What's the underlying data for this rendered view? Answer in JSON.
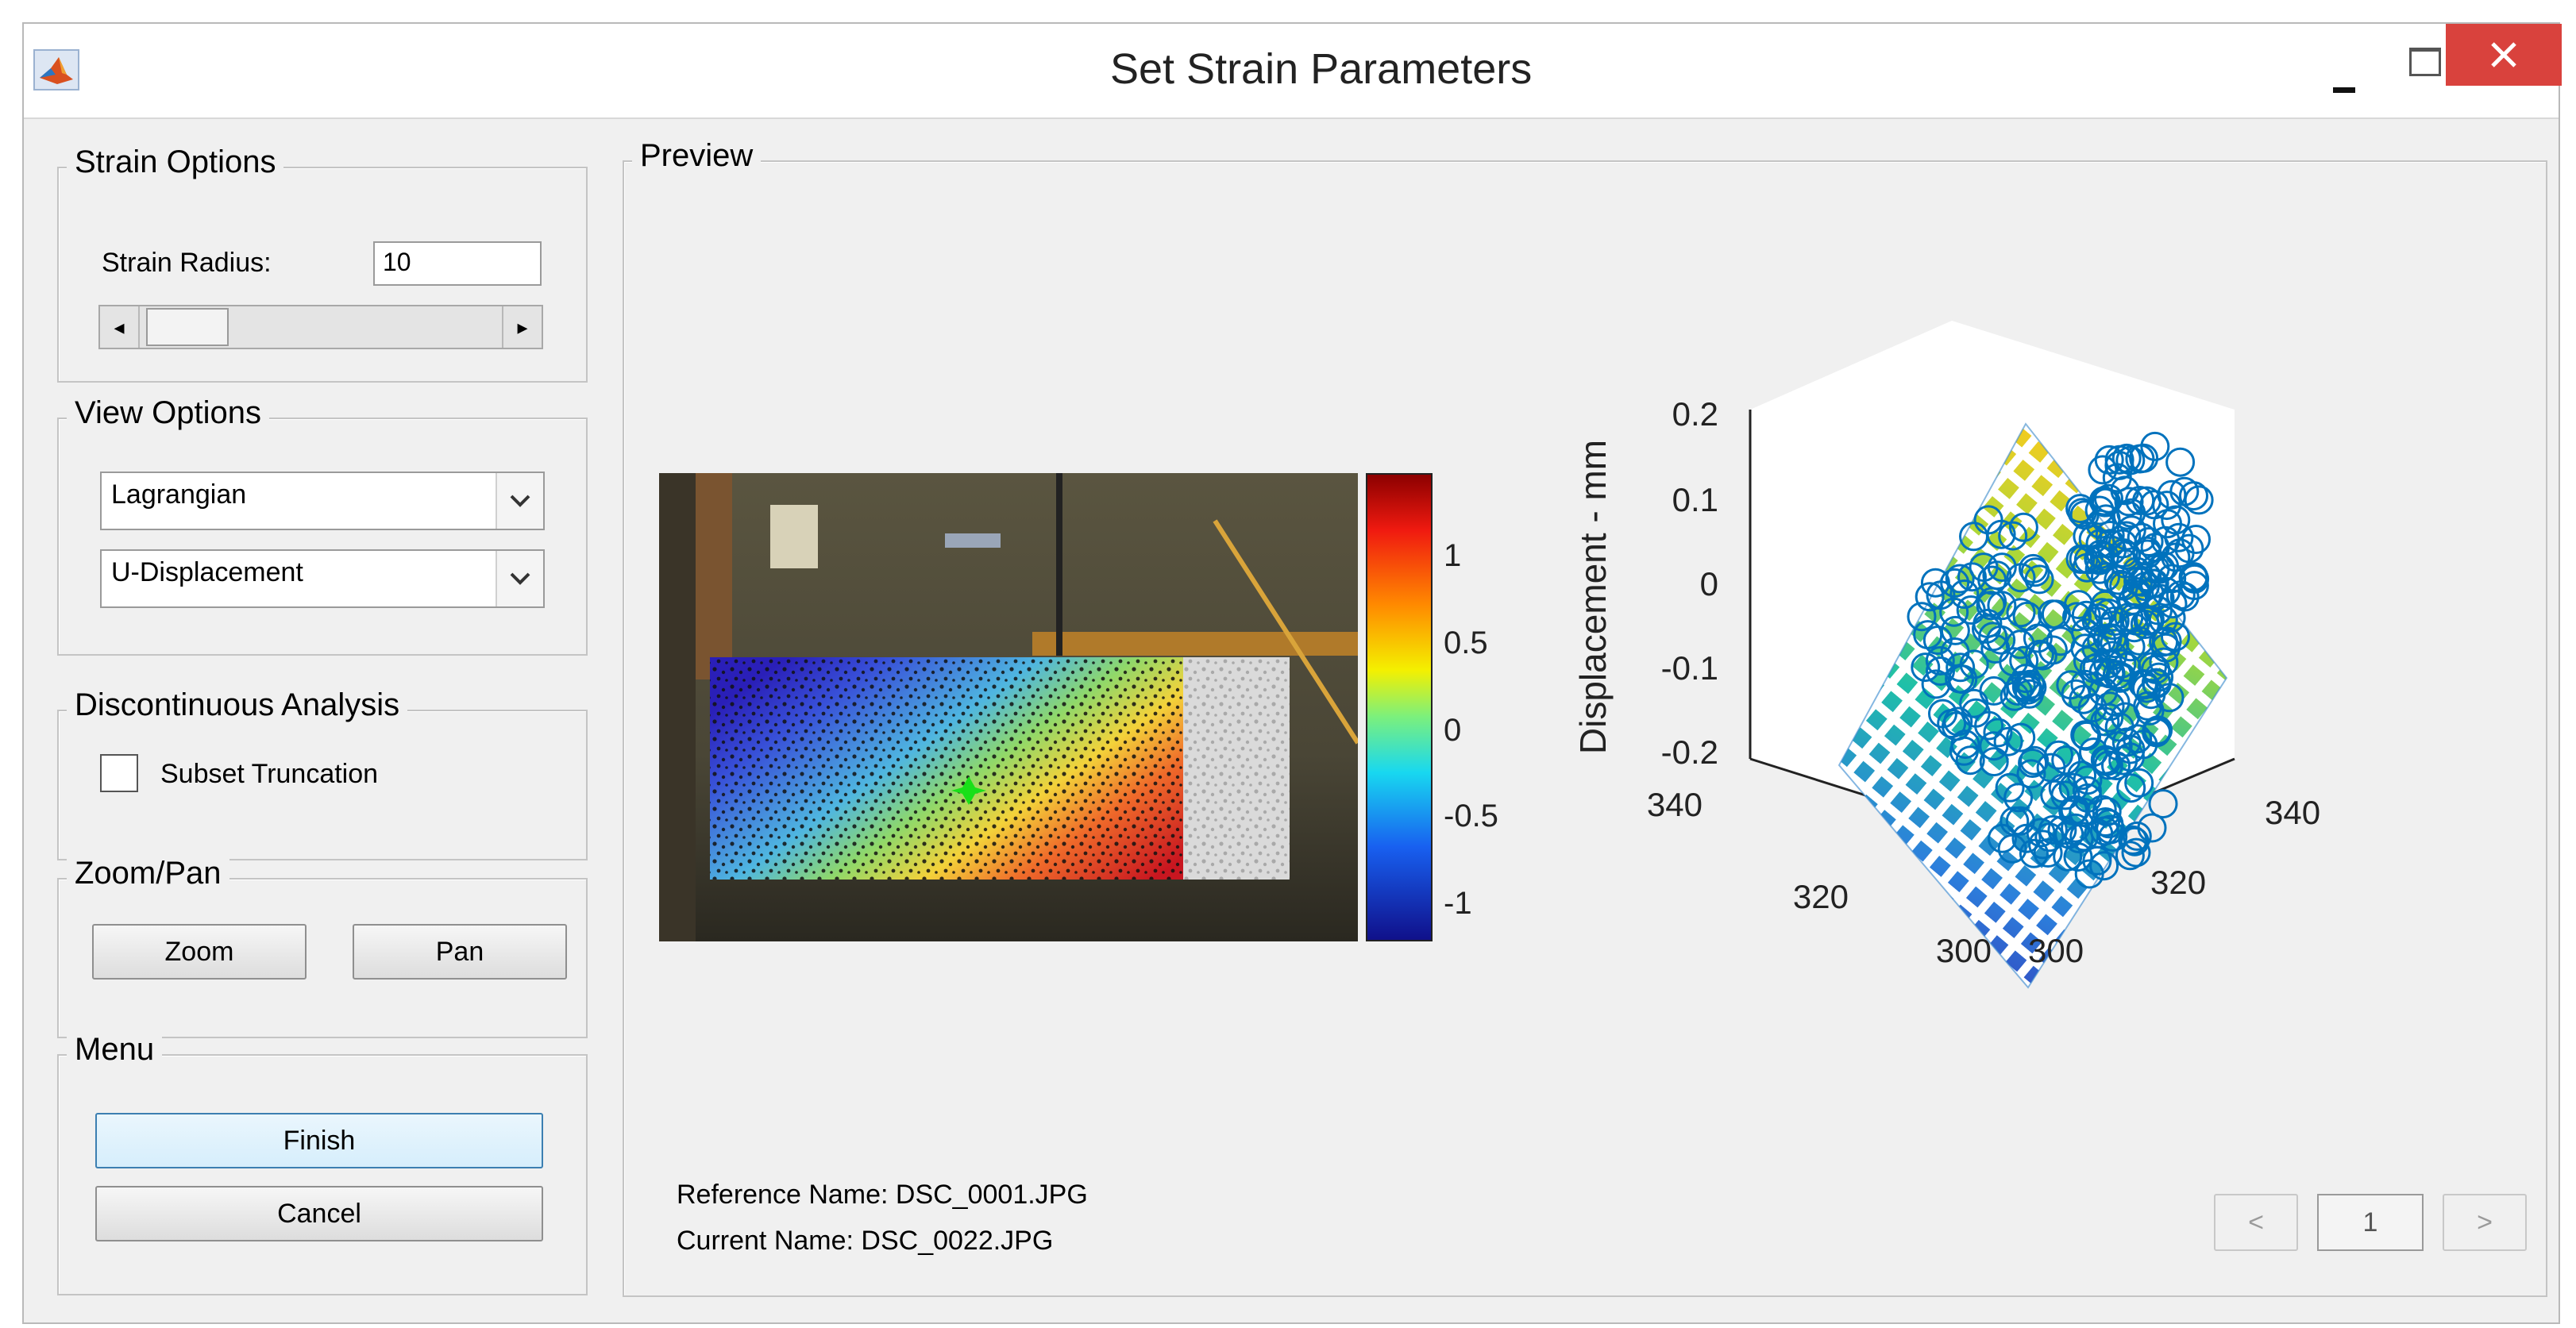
{
  "window": {
    "title": "Set Strain Parameters",
    "app_icon": "matlab-icon",
    "controls": {
      "minimize": "minimize-icon",
      "maximize": "maximize-icon",
      "close": "close-icon"
    },
    "close_color": "#e04343"
  },
  "strain_options": {
    "legend": "Strain Options",
    "radius_label": "Strain Radius:",
    "radius_value": "10",
    "slider_fraction": 0.12
  },
  "view_options": {
    "legend": "View Options",
    "reference_frame": "Lagrangian",
    "display_quantity": "U-Displacement"
  },
  "discontinuous": {
    "legend": "Discontinuous Analysis",
    "checkbox_label": "Subset Truncation",
    "checked": false
  },
  "zoom_pan": {
    "legend": "Zoom/Pan",
    "zoom_label": "Zoom",
    "pan_label": "Pan"
  },
  "menu": {
    "legend": "Menu",
    "finish_label": "Finish",
    "cancel_label": "Cancel"
  },
  "preview": {
    "legend": "Preview",
    "reference_name": "Reference Name: DSC_0001.JPG",
    "current_name": "Current Name: DSC_0022.JPG",
    "page": "1",
    "prev_label": "<",
    "next_label": ">"
  },
  "colorbar": {
    "ticks": [
      "1",
      "0.5",
      "0",
      "-0.5",
      "-1"
    ],
    "range": [
      -1.2,
      1.4
    ],
    "colormap": "jet"
  },
  "chart_data": {
    "type": "scatter",
    "title": "",
    "xlabel": "",
    "ylabel": "",
    "zlabel": "Displacement - mm",
    "z_ticks": [
      "0.2",
      "0.1",
      "0",
      "-0.1",
      "-0.2"
    ],
    "x_ticks": [
      "340",
      "320",
      "300"
    ],
    "y_ticks": [
      "300",
      "320",
      "340"
    ],
    "zlim": [
      -0.25,
      0.22
    ],
    "surface": "mesh",
    "marker": "circle",
    "marker_color": "#0072bd",
    "grid": false
  }
}
